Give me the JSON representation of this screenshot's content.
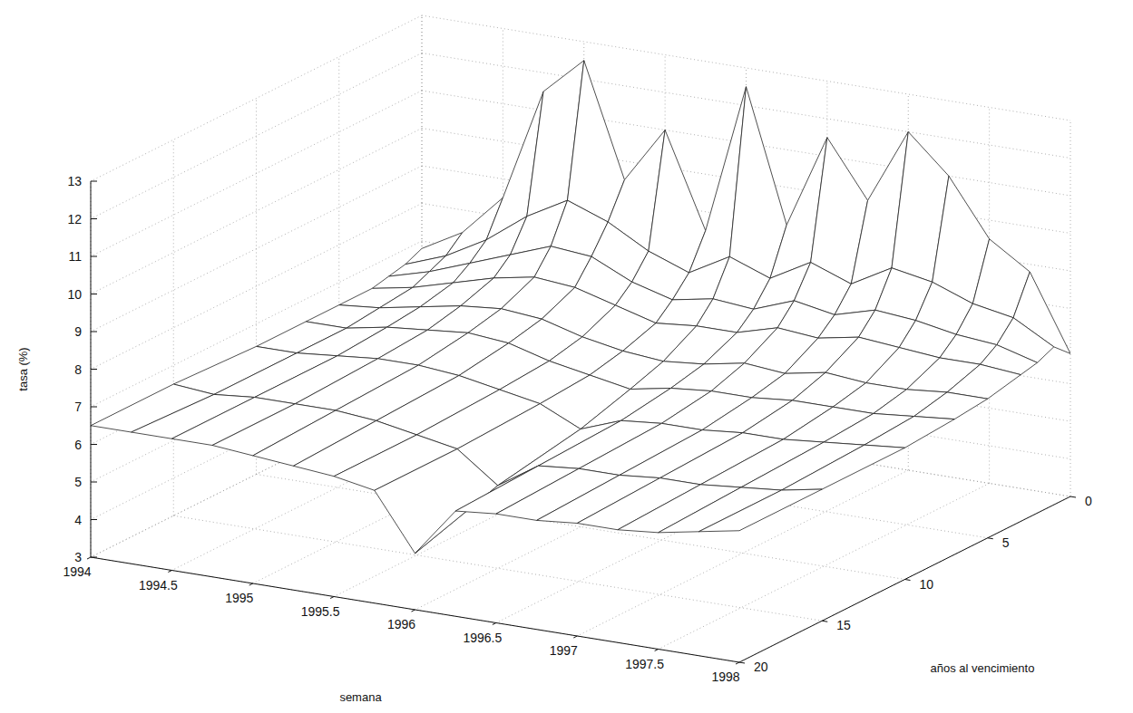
{
  "chart_data": {
    "type": "surface",
    "x_label": "semana",
    "y_label": "años al vencimiento",
    "z_label": "tasa (%)",
    "x": [
      1994,
      1994.25,
      1994.5,
      1994.75,
      1995,
      1995.25,
      1995.5,
      1995.75,
      1996,
      1996.25,
      1996.5,
      1996.75,
      1997,
      1997.25,
      1997.5,
      1997.75,
      1998
    ],
    "y": [
      0,
      1,
      2,
      3,
      5,
      7,
      10,
      15,
      20
    ],
    "z": [
      [
        6.8,
        6.6,
        6.5,
        6.4,
        6.4,
        6.4,
        6.4,
        6.5,
        6.5
      ],
      [
        7.4,
        7.0,
        6.8,
        6.6,
        6.5,
        6.4,
        6.4,
        6.4,
        6.5
      ],
      [
        8.5,
        7.6,
        7.2,
        6.9,
        6.7,
        6.6,
        6.5,
        6.5,
        6.5
      ],
      [
        11.5,
        8.4,
        7.6,
        7.2,
        6.9,
        6.7,
        6.6,
        6.5,
        6.5
      ],
      [
        12.5,
        9.0,
        8.0,
        7.4,
        7.0,
        6.8,
        6.6,
        6.5,
        6.4
      ],
      [
        9.5,
        8.6,
        7.9,
        7.3,
        6.9,
        6.7,
        6.5,
        6.4,
        6.3
      ],
      [
        11.0,
        8.0,
        7.4,
        7.0,
        6.6,
        6.4,
        6.3,
        6.2,
        6.2
      ],
      [
        8.5,
        7.6,
        7.1,
        6.7,
        6.4,
        6.2,
        6.1,
        6.0,
        6.0
      ],
      [
        12.5,
        8.2,
        7.3,
        6.8,
        6.3,
        6.0,
        5.6,
        5.2,
        4.5
      ],
      [
        9.0,
        7.8,
        7.2,
        6.8,
        6.4,
        6.2,
        6.0,
        5.9,
        5.8
      ],
      [
        11.5,
        8.4,
        7.6,
        7.1,
        6.6,
        6.3,
        6.1,
        6.0,
        5.9
      ],
      [
        10.0,
        8.0,
        7.4,
        7.0,
        6.5,
        6.3,
        6.1,
        6.0,
        5.9
      ],
      [
        12.0,
        8.6,
        7.7,
        7.2,
        6.7,
        6.4,
        6.2,
        6.1,
        6.0
      ],
      [
        11.0,
        8.4,
        7.6,
        7.1,
        6.6,
        6.4,
        6.2,
        6.1,
        6.0
      ],
      [
        9.5,
        8.0,
        7.4,
        7.0,
        6.6,
        6.4,
        6.3,
        6.2,
        6.1
      ],
      [
        8.8,
        7.8,
        7.3,
        7.0,
        6.7,
        6.5,
        6.4,
        6.3,
        6.3
      ],
      [
        6.8,
        7.2,
        7.0,
        6.9,
        6.7,
        6.6,
        6.5,
        6.5,
        6.5
      ]
    ],
    "xlim": [
      1994,
      1998
    ],
    "xticks": [
      1994,
      1994.5,
      1995,
      1995.5,
      1996,
      1996.5,
      1997,
      1997.5,
      1998
    ],
    "ylim": [
      0,
      20
    ],
    "yticks": [
      0,
      5,
      10,
      15,
      20
    ],
    "zlim": [
      3,
      13
    ],
    "zticks": [
      3,
      4,
      5,
      6,
      7,
      8,
      9,
      10,
      11,
      12,
      13
    ],
    "grid": true,
    "color": "#222222"
  }
}
